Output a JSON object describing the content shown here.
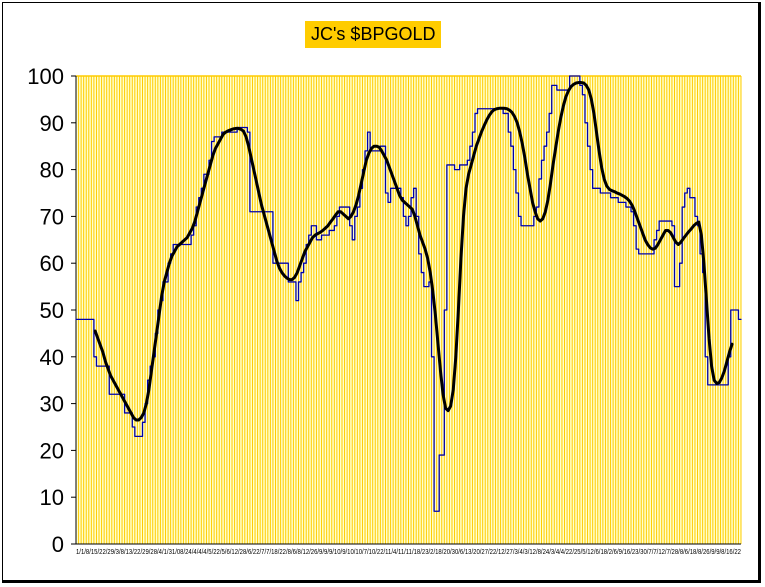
{
  "chart_data": {
    "type": "line",
    "title": "JC's $BPGOLD",
    "xlabel": "",
    "ylabel": "",
    "ylim": [
      0,
      100
    ],
    "yticks": [
      0,
      10,
      20,
      30,
      40,
      50,
      60,
      70,
      80,
      90,
      100
    ],
    "x_tick_text": "1/1/8/15/22/29/3/8/13/22/29/28/4/1/31/08/24/4/4/4/5/22/5/6/12/28/6/22/7/7/18/22/8/6/8/12/26/9/9/9/10/9/10/10/7/10/22/11/4/11/11/18/23/2/18/20/30/6/13/20/27/22/12/27/3/4/3/12/8/24/3/4/4/22/25/5/12/6/18/2/6/9/16/23/30/7/7/12/7/28/8/6/18/8/26/9/9/8/16/22",
    "plot_background": "#ffffcc",
    "gridline_color": "#ffcc00",
    "grid": true,
    "legend": "none",
    "series": [
      {
        "color": "#0000aa",
        "style": "step",
        "values": [
          48,
          48,
          48,
          48,
          48,
          48,
          48,
          40,
          38,
          38,
          38,
          38,
          38,
          32,
          32,
          32,
          32,
          32,
          32,
          28,
          28,
          28,
          25,
          23,
          23,
          23,
          26,
          30,
          35,
          38,
          40,
          45,
          50,
          52,
          56,
          56,
          60,
          62,
          64,
          64,
          64,
          64,
          64,
          64,
          64,
          66,
          68,
          72,
          74,
          76,
          79,
          79,
          82,
          86,
          87,
          87,
          87,
          88,
          88,
          88,
          88,
          88,
          88,
          89,
          89,
          89,
          89,
          88,
          71,
          71,
          71,
          71,
          71,
          71,
          71,
          71,
          71,
          60,
          60,
          60,
          60,
          60,
          60,
          56,
          56,
          56,
          52,
          56,
          58,
          60,
          64,
          66,
          68,
          68,
          65,
          65,
          66,
          66,
          66,
          67,
          67,
          68,
          70,
          72,
          72,
          72,
          72,
          68,
          65,
          70,
          72,
          76,
          80,
          84,
          88,
          84,
          84,
          84,
          84,
          85,
          85,
          75,
          73,
          76,
          76,
          76,
          76,
          74,
          70,
          68,
          70,
          74,
          76,
          70,
          62,
          58,
          55,
          55,
          56,
          40,
          7,
          7,
          19,
          19,
          50,
          81,
          81,
          81,
          80,
          80,
          81,
          81,
          81,
          82,
          85,
          88,
          92,
          93,
          93,
          93,
          93,
          93,
          93,
          93,
          93,
          93,
          93,
          92,
          92,
          88,
          85,
          80,
          75,
          70,
          68,
          68,
          68,
          68,
          68,
          70,
          72,
          78,
          82,
          85,
          88,
          92,
          98,
          98,
          97,
          97,
          97,
          97,
          97,
          100,
          100,
          100,
          100,
          98,
          96,
          90,
          85,
          80,
          76,
          76,
          76,
          75,
          75,
          75,
          75,
          74,
          74,
          74,
          73,
          73,
          73,
          72,
          72,
          71,
          68,
          63,
          62,
          62,
          62,
          62,
          62,
          62,
          65,
          67,
          69,
          69,
          69,
          69,
          69,
          68,
          55,
          55,
          60,
          72,
          75,
          76,
          74,
          74,
          70,
          68,
          62,
          58,
          40,
          34,
          34,
          34,
          34,
          34,
          34,
          34,
          34,
          40,
          50,
          50,
          50,
          48
        ],
        "name": ""
      },
      {
        "color": "#000000",
        "style": "smooth",
        "values": [
          null,
          null,
          null,
          null,
          null,
          null,
          null,
          45.5,
          44,
          42.5,
          41,
          39,
          37.5,
          36,
          35,
          34,
          33,
          32,
          31,
          30,
          29,
          28,
          27,
          26.5,
          26.5,
          27,
          28,
          30,
          33,
          37,
          41,
          45,
          49,
          53,
          56,
          58,
          60,
          61.5,
          62.5,
          63.5,
          64,
          64.5,
          65,
          65.5,
          66.5,
          67.5,
          69,
          71,
          73,
          75,
          77,
          79,
          81,
          83,
          84.5,
          85.5,
          86.5,
          87.5,
          88,
          88.3,
          88.5,
          88.7,
          88.8,
          88.8,
          88.6,
          88.2,
          87,
          85,
          82.5,
          80,
          77.5,
          75,
          72.5,
          70.5,
          68.5,
          66.5,
          64.5,
          62.5,
          60.5,
          59,
          58,
          57.3,
          56.8,
          56.5,
          56.5,
          57,
          58,
          59.5,
          61,
          62.5,
          63.5,
          64.5,
          65.5,
          66,
          66.3,
          66.6,
          67,
          67.5,
          68,
          68.8,
          69.5,
          70.3,
          71,
          71,
          70.5,
          70,
          69.5,
          70,
          71,
          72.5,
          74.5,
          77,
          79.5,
          82,
          83.5,
          84.5,
          85,
          85,
          84.8,
          84,
          83,
          82,
          80.5,
          79,
          77.5,
          76,
          74.5,
          73.5,
          73,
          72.5,
          72,
          71.5,
          70,
          68,
          66,
          64.5,
          63,
          61,
          58,
          54,
          49,
          43,
          37,
          32,
          29,
          28.5,
          29.5,
          33,
          40,
          50,
          61,
          70,
          76,
          79,
          81,
          83,
          85,
          86.5,
          88,
          89.3,
          90.5,
          91.5,
          92.3,
          92.8,
          93,
          93.1,
          93.1,
          93.1,
          93,
          92.7,
          92.2,
          91.3,
          90,
          88,
          85.5,
          82.5,
          79,
          76,
          73,
          71,
          69.5,
          69,
          69.5,
          71,
          73.5,
          77,
          81,
          84.5,
          88,
          91,
          93.5,
          95.5,
          96.8,
          97.7,
          98.2,
          98.5,
          98.6,
          98.6,
          98.5,
          98,
          97,
          95,
          92,
          88,
          84,
          80.5,
          78,
          76.5,
          75.8,
          75.5,
          75.3,
          75,
          74.8,
          74.5,
          74.2,
          73.8,
          73.2,
          72.3,
          71,
          69.5,
          68,
          66.5,
          65,
          64,
          63.3,
          63,
          63.2,
          64,
          65,
          66,
          67,
          67,
          66.5,
          65.5,
          64.5,
          64,
          64.5,
          65.3,
          66,
          66.7,
          67.3,
          68,
          68.5,
          68.8,
          66,
          60,
          52,
          44,
          38,
          35,
          34.3,
          34.5,
          35.5,
          37,
          39,
          41,
          42.7
        ]
      }
    ]
  }
}
